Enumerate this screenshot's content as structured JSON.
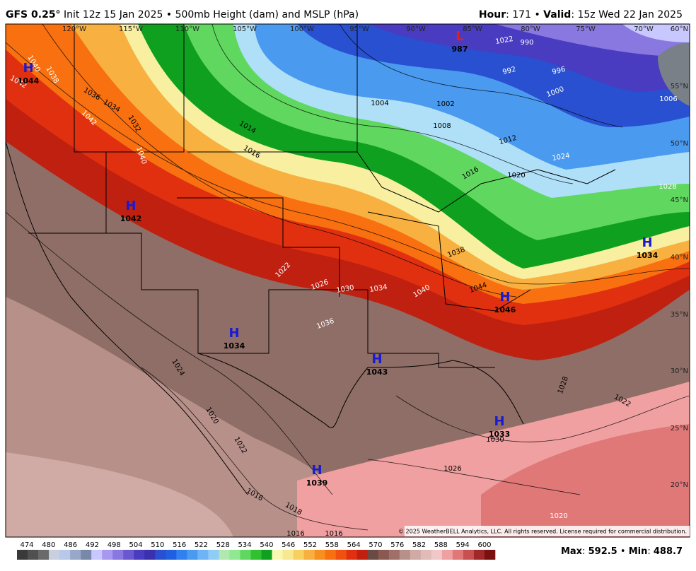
{
  "header": {
    "model": "GFS 0.25°",
    "init": "Init 12z 15 Jan 2025",
    "separator": "•",
    "product": "500mb Height (dam) and MSLP (hPa)",
    "hour_label": "Hour",
    "hour": ": 171",
    "valid_label": "Valid",
    "valid": ": 15z Wed 22 Jan 2025"
  },
  "longitude_labels": [
    "120°W",
    "115°W",
    "110°W",
    "105°W",
    "100°W",
    "95°W",
    "90°W",
    "85°W",
    "80°W",
    "75°W",
    "70°W"
  ],
  "latitude_labels": [
    "60°N",
    "55°N",
    "50°N",
    "45°N",
    "40°N",
    "35°N",
    "30°N",
    "25°N",
    "20°N"
  ],
  "pressure_centers": [
    {
      "symbol": "H",
      "value": 1044
    },
    {
      "symbol": "L",
      "value": 987
    },
    {
      "symbol": "H",
      "value": 1042
    },
    {
      "symbol": "H",
      "value": 1034
    },
    {
      "symbol": "H",
      "value": 1043
    },
    {
      "symbol": "H",
      "value": 1046
    },
    {
      "symbol": "H",
      "value": 1034
    },
    {
      "symbol": "H",
      "value": 1033
    },
    {
      "symbol": "H",
      "value": 1039
    }
  ],
  "isobar_labels": [
    1040,
    1038,
    1042,
    1036,
    1034,
    1032,
    1042,
    1040,
    1014,
    1016,
    1004,
    1002,
    1008,
    1012,
    1016,
    1020,
    1024,
    1022,
    990,
    992,
    996,
    1000,
    1006,
    1028,
    1022,
    1026,
    1030,
    1034,
    1040,
    1044,
    1038,
    1036,
    1024,
    1020,
    1022,
    1016,
    1018,
    1016,
    1016,
    1026,
    1030,
    1028,
    1022,
    1020
  ],
  "copyright": "© 2025 WeatherBELL Analytics, LLC. All rights reserved. License required for commercial distribution.",
  "colorbar": {
    "labels": [
      474,
      480,
      486,
      492,
      498,
      504,
      510,
      516,
      522,
      528,
      534,
      540,
      546,
      552,
      558,
      564,
      570,
      576,
      582,
      588,
      594,
      600
    ],
    "colors": [
      "#3a3a3a",
      "#505050",
      "#6a6a6a",
      "#c8d0e0",
      "#b8c8e8",
      "#98a8c8",
      "#7888a8",
      "#c8c8ff",
      "#a898f0",
      "#8878e0",
      "#6a58d0",
      "#4a3cc0",
      "#3a30b0",
      "#2850d0",
      "#2060e0",
      "#3080f0",
      "#4a9af0",
      "#70b4f8",
      "#90ccf8",
      "#b0e8b0",
      "#90e890",
      "#60d860",
      "#30c030",
      "#10a020",
      "#f8f8b0",
      "#f8e890",
      "#f8d060",
      "#f8b040",
      "#f89020",
      "#f87010",
      "#f05010",
      "#e03010",
      "#c02010",
      "#6a4a44",
      "#8a5a50",
      "#a07068",
      "#b8908a",
      "#d0aaa4",
      "#e0bbb8",
      "#f0c8c8",
      "#f0a0a0",
      "#e07878",
      "#c85050",
      "#a02828",
      "#7a1010"
    ]
  },
  "stats": {
    "max_label": "Max",
    "max": 592.5,
    "separator": "•",
    "min_label": "Min",
    "min": 488.7
  }
}
